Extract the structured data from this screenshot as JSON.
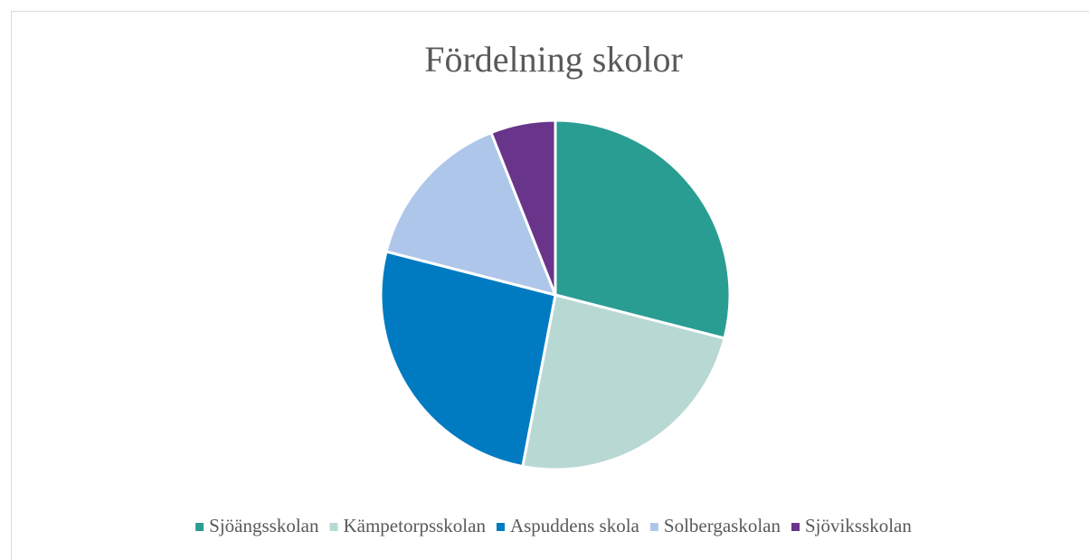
{
  "chart_data": {
    "type": "pie",
    "title": "Fördelning skolor",
    "categories": [
      "Sjöängsskolan",
      "Kämpetorpsskolan",
      "Aspuddens skola",
      "Solbergaskolan",
      "Sjöviksskolan"
    ],
    "values": [
      29,
      24,
      26,
      15,
      6
    ],
    "colors": [
      "#2a9d93",
      "#b8d8d4",
      "#007bc2",
      "#aec6ea",
      "#69358a"
    ],
    "legend": "bottom"
  }
}
